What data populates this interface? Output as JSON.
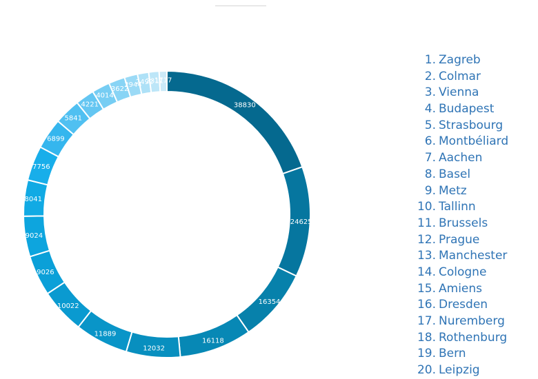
{
  "chart_data": {
    "type": "donut",
    "categories": [
      "Zagreb",
      "Colmar",
      "Vienna",
      "Budapest",
      "Strasbourg",
      "Montbéliard",
      "Aachen",
      "Basel",
      "Metz",
      "Tallinn",
      "Brussels",
      "Prague",
      "Manchester",
      "Cologne",
      "Amiens",
      "Dresden",
      "Nuremberg",
      "Rothenburg",
      "Bern",
      "Leipzig"
    ],
    "values": [
      38830,
      24625,
      16354,
      16118,
      12032,
      11889,
      10022,
      9026,
      9024,
      8041,
      7756,
      6899,
      5841,
      4221,
      4014,
      3622,
      2944,
      2492,
      2311,
      1717
    ],
    "label_text": [
      "38830",
      "24625",
      "16354",
      "16118",
      "12032",
      "11889",
      "10022",
      "9026",
      "9024",
      "8041",
      "7756",
      "6899",
      "5841",
      "4221",
      "4014",
      "3622",
      "2944",
      "2492",
      "2311",
      "1717"
    ],
    "legend_numbers": [
      "1.",
      "2.",
      "3.",
      "4.",
      "5.",
      "6.",
      "7.",
      "8.",
      "9.",
      "10.",
      "11.",
      "12.",
      "13.",
      "14.",
      "15.",
      "16.",
      "17.",
      "18.",
      "19.",
      "20."
    ],
    "colors": [
      "#05698f",
      "#06769f",
      "#0781ab",
      "#0788b5",
      "#088fbf",
      "#0995c8",
      "#0a9ad0",
      "#0ba0d8",
      "#0da5de",
      "#11aae4",
      "#18aeea",
      "#35b6ee",
      "#50c0f1",
      "#64c6f2",
      "#76cdf3",
      "#88d4f5",
      "#9bdaf6",
      "#aee1f7",
      "#bde6f8",
      "#cceaf8"
    ],
    "legend_position": "right",
    "legend_color": "#2f74b5",
    "label_color": "#ffffff"
  }
}
